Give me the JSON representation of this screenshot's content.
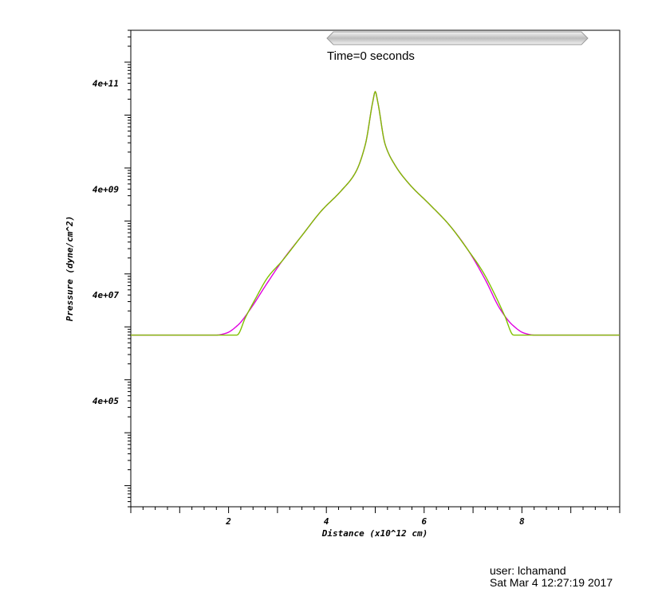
{
  "chart_data": {
    "type": "line",
    "title": "",
    "annotation": "Time=0 seconds",
    "xlabel": "Distance (x10^12 cm)",
    "ylabel": "Pressure (dyne/cm^2)",
    "xlim": [
      0,
      10
    ],
    "ylim": [
      4000,
      4000000000000
    ],
    "yscale": "log",
    "xticks": [
      {
        "value": 2,
        "label": "2"
      },
      {
        "value": 4,
        "label": "4"
      },
      {
        "value": 6,
        "label": "6"
      },
      {
        "value": 8,
        "label": "8"
      }
    ],
    "yticks": [
      {
        "value": 400000,
        "label": "4e+05"
      },
      {
        "value": 40000000,
        "label": "4e+07"
      },
      {
        "value": 4000000000,
        "label": "4e+09"
      },
      {
        "value": 400000000000,
        "label": "4e+11"
      }
    ],
    "grid": false,
    "legend": "none",
    "series": [
      {
        "color": "#e000e0",
        "x": [
          0,
          1.75,
          1.95,
          2.2,
          2.45,
          2.75,
          3.1,
          3.5,
          3.9,
          4.3,
          4.6,
          4.8,
          4.95,
          5.0,
          5.05,
          5.2,
          5.4,
          5.7,
          6.1,
          6.5,
          6.9,
          7.25,
          7.55,
          7.8,
          8.05,
          8.25,
          10
        ],
        "y": [
          7000000,
          7000000,
          7600000,
          11000000,
          22000000,
          59000000,
          178000000,
          530000000,
          1560000000,
          3690000000,
          8370000000,
          28500000000,
          180000000000,
          279000000000,
          180000000000,
          28500000000,
          11500000000,
          4930000000,
          2110000000,
          870000000,
          280000000,
          78000000,
          22000000,
          11000000,
          7600000,
          7000000,
          7000000
        ]
      },
      {
        "color": "#80c000",
        "x": [
          0,
          2.17,
          2.35,
          2.55,
          2.8,
          3.1,
          3.5,
          3.9,
          4.3,
          4.6,
          4.8,
          4.95,
          5.0,
          5.05,
          5.2,
          5.4,
          5.7,
          6.1,
          6.5,
          6.9,
          7.2,
          7.45,
          7.65,
          7.83,
          10
        ],
        "y": [
          7000000,
          7000000,
          15400000,
          34000000,
          86000000,
          178000000,
          530000000,
          1560000000,
          3690000000,
          8370000000,
          28500000000,
          180000000000,
          279000000000,
          180000000000,
          28500000000,
          11500000000,
          4930000000,
          2110000000,
          870000000,
          280000000,
          110000000,
          40000000,
          16000000,
          7000000,
          7000000
        ]
      }
    ]
  },
  "footer": {
    "user": "user: lchamand",
    "date": "Sat Mar  4 12:27:19 2017"
  },
  "colors": {
    "slider": "#c8c8c8",
    "axis": "#000000"
  }
}
